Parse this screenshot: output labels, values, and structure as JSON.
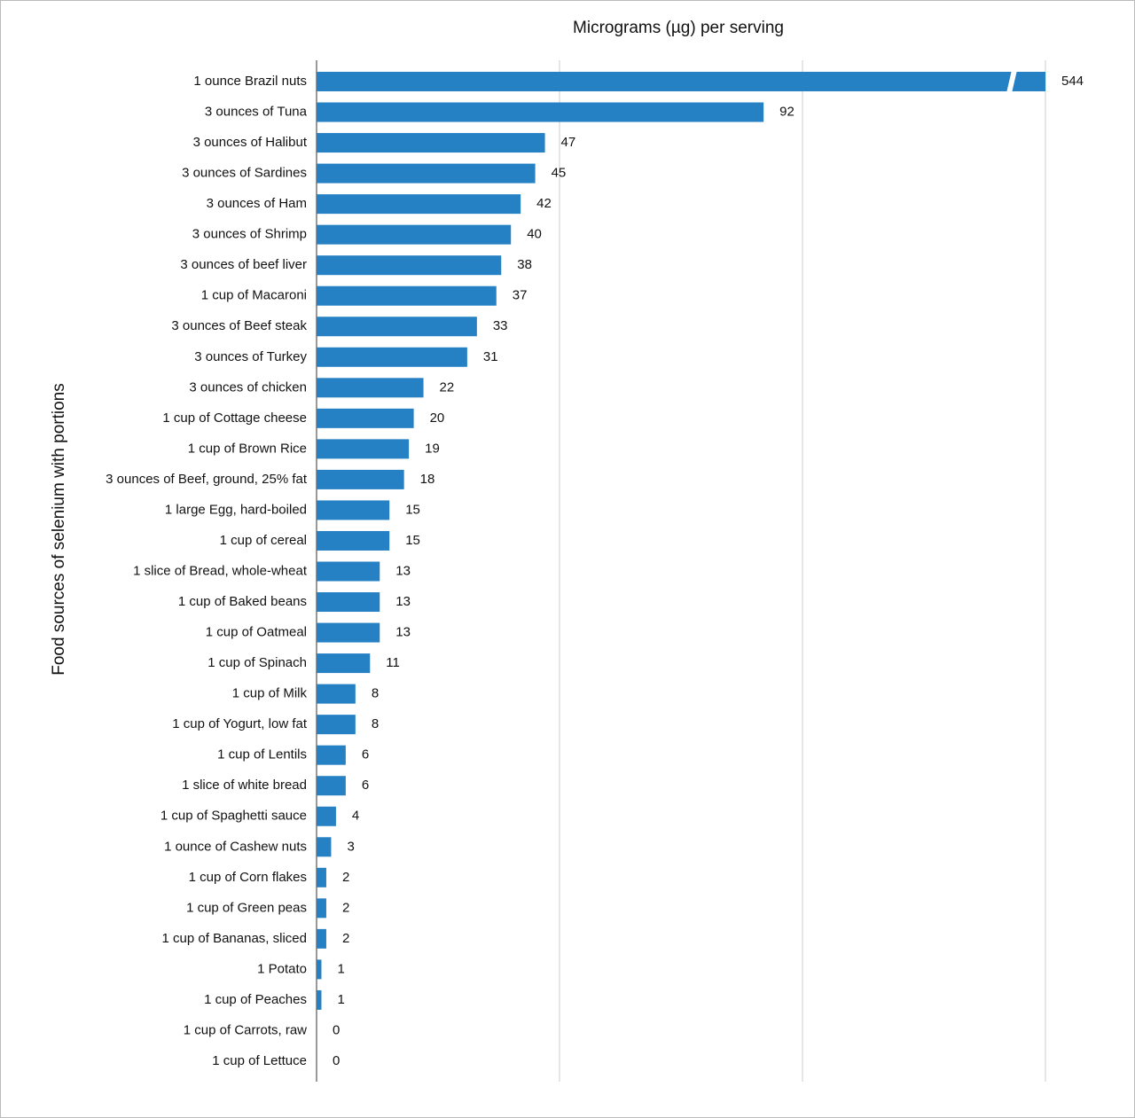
{
  "chart_data": {
    "type": "bar",
    "orientation": "horizontal",
    "title": "Micrograms (µg) per serving",
    "y_label": "Food sources of selenium with portions",
    "categories": [
      "1 ounce Brazil nuts",
      "3 ounces of Tuna",
      "3 ounces of Halibut",
      "3 ounces of Sardines",
      "3 ounces of Ham",
      "3 ounces of Shrimp",
      "3 ounces of beef liver",
      "1 cup of Macaroni",
      "3 ounces of Beef steak",
      "3 ounces of Turkey",
      "3 ounces of chicken",
      "1 cup of Cottage cheese",
      "1 cup of Brown Rice",
      "3 ounces of Beef, ground, 25% fat",
      "1 large Egg, hard-boiled",
      "1 cup of cereal",
      "1 slice of Bread, whole-wheat",
      "1 cup of Baked beans",
      "1 cup of Oatmeal",
      "1 cup of Spinach",
      "1 cup of Milk",
      "1 cup of Yogurt, low fat",
      "1 cup of Lentils",
      "1 slice of white bread",
      "1 cup of Spaghetti sauce",
      "1 ounce of Cashew nuts",
      "1 cup of Corn flakes",
      "1 cup of Green peas",
      "1 cup of Bananas, sliced",
      "1 Potato",
      "1 cup of Peaches",
      "1 cup of Carrots, raw",
      "1 cup of Lettuce"
    ],
    "values": [
      544,
      92,
      47,
      45,
      42,
      40,
      38,
      37,
      33,
      31,
      22,
      20,
      19,
      18,
      15,
      15,
      13,
      13,
      13,
      11,
      8,
      8,
      6,
      6,
      4,
      3,
      2,
      2,
      2,
      1,
      1,
      0,
      0
    ],
    "color": "#2581c4",
    "xlim": [
      0,
      150
    ],
    "xticks": [
      0,
      50,
      100,
      150
    ],
    "grid": true,
    "axis_break": true
  }
}
